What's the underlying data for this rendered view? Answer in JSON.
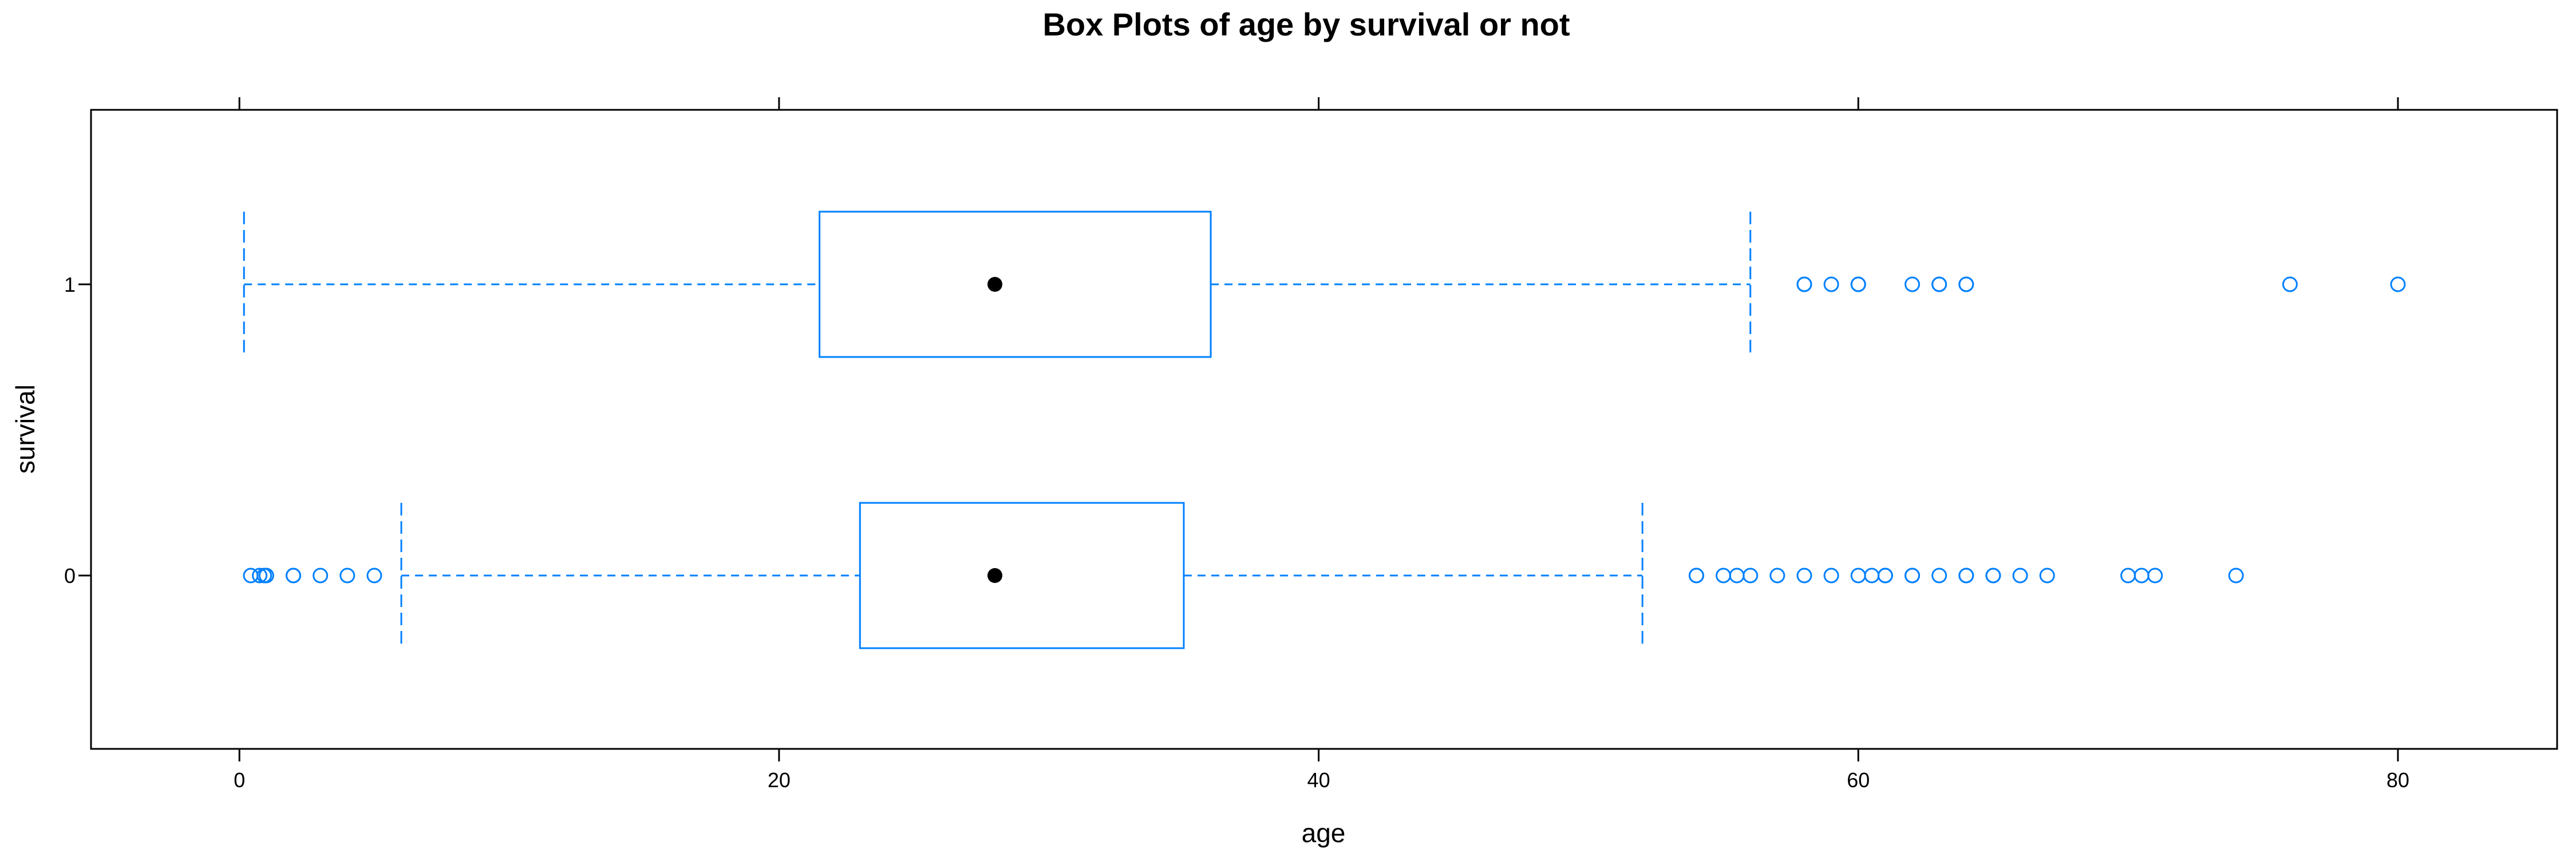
{
  "chart_data": {
    "type": "box",
    "title": "Box Plots of age by survival or not",
    "xlabel": "age",
    "ylabel": "survival",
    "xlim": [
      -5.5,
      85.9
    ],
    "x_ticks": [
      0,
      20,
      40,
      60,
      80
    ],
    "categories": [
      "0",
      "1"
    ],
    "series": [
      {
        "category": "0",
        "whisker_low": 6,
        "q1": 23,
        "median": 28,
        "q3": 35,
        "whisker_high": 52,
        "outliers": [
          0.42,
          0.75,
          0.92,
          1,
          2,
          2,
          3,
          4,
          5,
          54,
          54,
          55,
          55.5,
          56,
          57,
          58,
          59,
          60,
          60.5,
          61,
          61,
          62,
          62,
          63,
          64,
          64,
          65,
          65,
          66,
          67,
          70,
          70.5,
          71,
          74
        ]
      },
      {
        "category": "1",
        "whisker_low": 0.17,
        "q1": 21.5,
        "median": 28,
        "q3": 36,
        "whisker_high": 56,
        "outliers": [
          58,
          58,
          59,
          60,
          60,
          62,
          63,
          63,
          64,
          64,
          76,
          80
        ]
      }
    ],
    "colors": {
      "box": "#0080ff",
      "median_dot": "#000000",
      "frame": "#000000"
    },
    "grid": false,
    "legend": "none"
  }
}
